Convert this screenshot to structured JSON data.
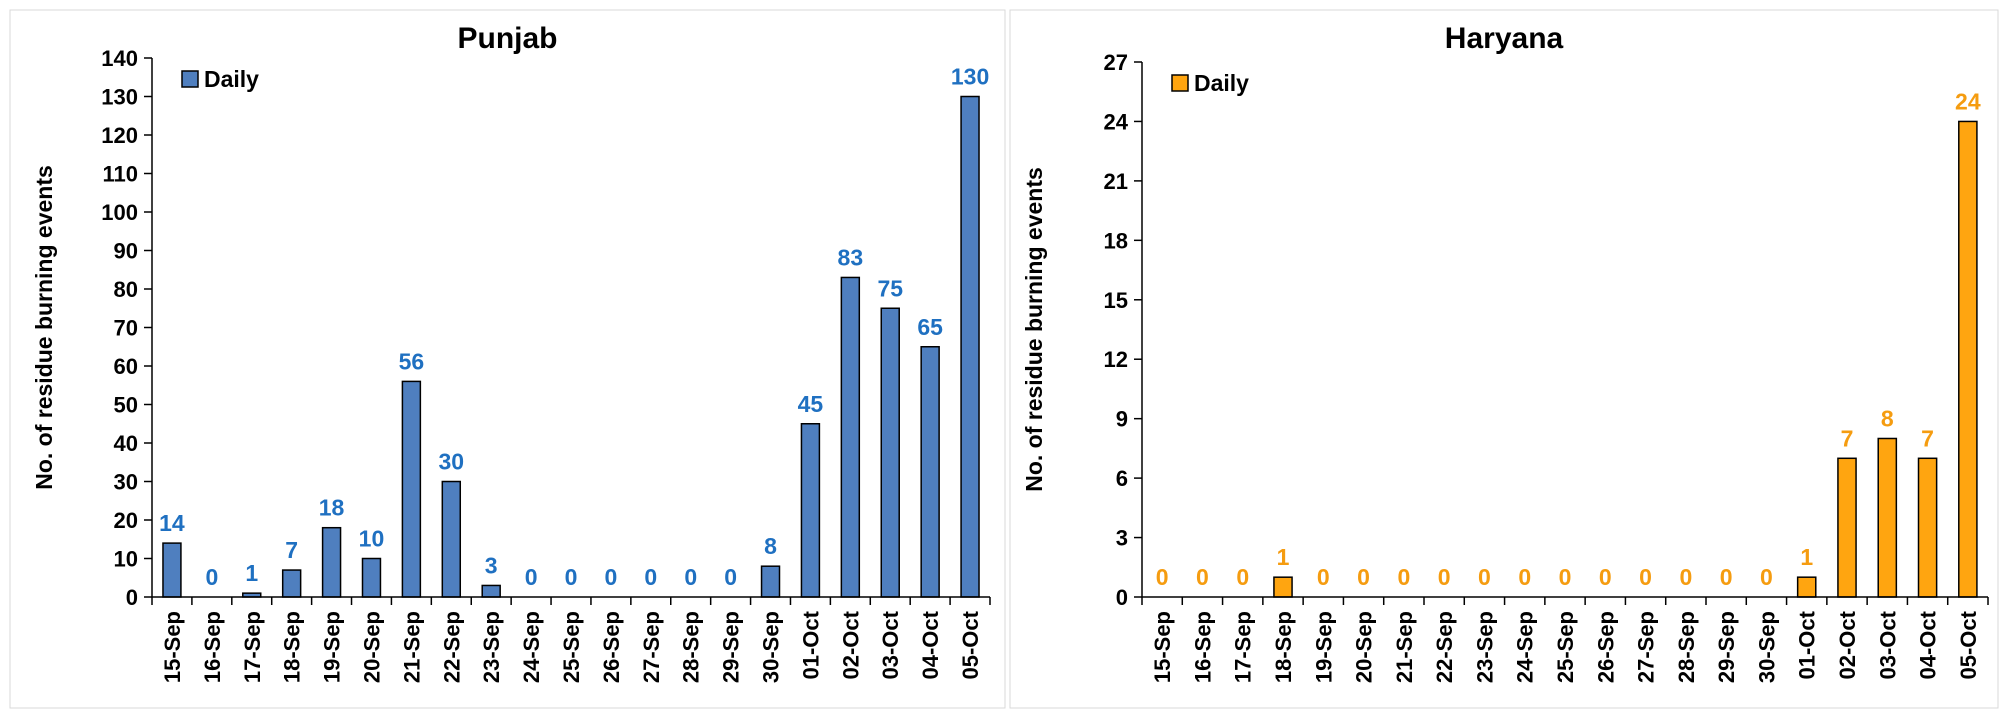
{
  "chart_data": [
    {
      "type": "bar",
      "title": "Punjab",
      "y_label": "No. of residue burning events",
      "categories": [
        "15-Sep",
        "16-Sep",
        "17-Sep",
        "18-Sep",
        "19-Sep",
        "20-Sep",
        "21-Sep",
        "22-Sep",
        "23-Sep",
        "24-Sep",
        "25-Sep",
        "26-Sep",
        "27-Sep",
        "28-Sep",
        "29-Sep",
        "30-Sep",
        "01-Oct",
        "02-Oct",
        "03-Oct",
        "04-Oct",
        "05-Oct"
      ],
      "series": [
        {
          "name": "Daily",
          "color": "#4f7fbf",
          "label_color": "#1f70c1",
          "values": [
            14,
            0,
            1,
            7,
            18,
            10,
            56,
            30,
            3,
            0,
            0,
            0,
            0,
            0,
            0,
            8,
            45,
            83,
            75,
            65,
            130
          ]
        }
      ],
      "ylim": [
        0,
        140
      ],
      "yticks": [
        0,
        10,
        20,
        30,
        40,
        50,
        60,
        70,
        80,
        90,
        100,
        110,
        120,
        130,
        140
      ],
      "legend": "top-left",
      "data_labels": true
    },
    {
      "type": "bar",
      "title": "Haryana",
      "y_label": "No. of residue burning events",
      "categories": [
        "15-Sep",
        "16-Sep",
        "17-Sep",
        "18-Sep",
        "19-Sep",
        "20-Sep",
        "21-Sep",
        "22-Sep",
        "23-Sep",
        "24-Sep",
        "25-Sep",
        "26-Sep",
        "27-Sep",
        "28-Sep",
        "29-Sep",
        "30-Sep",
        "01-Oct",
        "02-Oct",
        "03-Oct",
        "04-Oct",
        "05-Oct"
      ],
      "series": [
        {
          "name": "Daily",
          "color": "#ffa510",
          "label_color": "#f59c10",
          "values": [
            0,
            0,
            0,
            1,
            0,
            0,
            0,
            0,
            0,
            0,
            0,
            0,
            0,
            0,
            0,
            0,
            1,
            7,
            8,
            7,
            24
          ]
        }
      ],
      "ylim": [
        0,
        27
      ],
      "yticks": [
        0,
        3,
        6,
        9,
        12,
        15,
        18,
        21,
        24,
        27
      ],
      "legend": "top-left",
      "data_labels": true
    }
  ]
}
